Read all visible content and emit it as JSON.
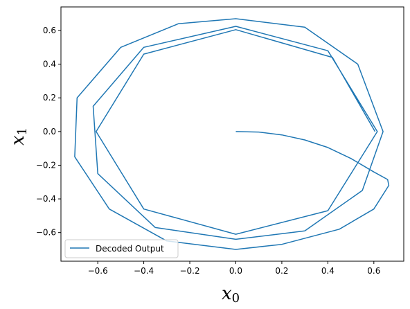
{
  "chart_data": {
    "type": "line",
    "xlabel": "x",
    "xlabel_sub": "0",
    "ylabel": "x",
    "ylabel_sub": "1",
    "xlim": [
      -0.76,
      0.73
    ],
    "ylim": [
      -0.77,
      0.74
    ],
    "xticks": [
      -0.6,
      -0.4,
      -0.2,
      0.0,
      0.2,
      0.4,
      0.6
    ],
    "yticks": [
      -0.6,
      -0.4,
      -0.2,
      0.0,
      0.2,
      0.4,
      0.6
    ],
    "xtick_labels": [
      "−0.6",
      "−0.4",
      "−0.2",
      "0.0",
      "0.2",
      "0.4",
      "0.6"
    ],
    "ytick_labels": [
      "−0.6",
      "−0.4",
      "−0.2",
      "0.0",
      "0.2",
      "0.4",
      "0.6"
    ],
    "grid": false,
    "legend_position": "lower-left",
    "series": [
      {
        "name": "Decoded Output",
        "color": "#1f77b4",
        "trajectory": "spiral",
        "start": [
          0.0,
          0.0
        ],
        "loop_radii": [
          0.67,
          0.64,
          0.625,
          0.615,
          0.61,
          0.608,
          0.606,
          0.605
        ],
        "limit_cycle_radius": 0.605,
        "points": [
          [
            0.0,
            0.0
          ],
          [
            0.1,
            -0.003
          ],
          [
            0.2,
            -0.02
          ],
          [
            0.3,
            -0.05
          ],
          [
            0.4,
            -0.095
          ],
          [
            0.5,
            -0.16
          ],
          [
            0.6,
            -0.24
          ],
          [
            0.66,
            -0.285
          ],
          [
            0.665,
            -0.32
          ],
          [
            0.6,
            -0.46
          ],
          [
            0.45,
            -0.58
          ],
          [
            0.2,
            -0.67
          ],
          [
            0.0,
            -0.7
          ],
          [
            -0.3,
            -0.65
          ],
          [
            -0.55,
            -0.46
          ],
          [
            -0.7,
            -0.15
          ],
          [
            -0.69,
            0.2
          ],
          [
            -0.5,
            0.5
          ],
          [
            -0.25,
            0.64
          ],
          [
            0.0,
            0.67
          ],
          [
            0.3,
            0.62
          ],
          [
            0.53,
            0.4
          ],
          [
            0.64,
            0.0
          ],
          [
            0.55,
            -0.35
          ],
          [
            0.3,
            -0.59
          ],
          [
            0.0,
            -0.64
          ],
          [
            -0.35,
            -0.57
          ],
          [
            -0.6,
            -0.25
          ],
          [
            -0.62,
            0.15
          ],
          [
            -0.4,
            0.5
          ],
          [
            0.0,
            0.625
          ],
          [
            0.4,
            0.48
          ],
          [
            0.615,
            0.0
          ],
          [
            0.4,
            -0.47
          ],
          [
            0.0,
            -0.61
          ],
          [
            -0.4,
            -0.46
          ],
          [
            -0.607,
            0.0
          ],
          [
            -0.4,
            0.46
          ],
          [
            0.0,
            0.605
          ],
          [
            0.42,
            0.44
          ],
          [
            0.605,
            0.0
          ]
        ]
      }
    ]
  }
}
